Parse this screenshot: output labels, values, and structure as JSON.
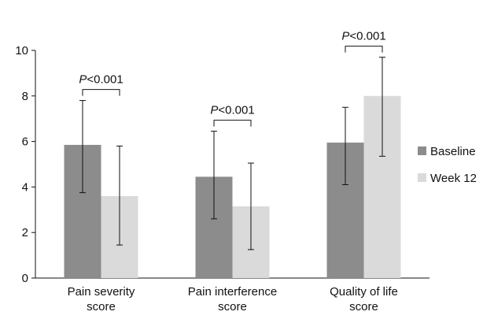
{
  "chart_data": {
    "type": "bar",
    "title": "",
    "xlabel": "",
    "ylabel": "",
    "ylim": [
      0,
      10
    ],
    "yticks": [
      0,
      2,
      4,
      6,
      8,
      10
    ],
    "categories": [
      [
        "Pain severity",
        "score"
      ],
      [
        "Pain interference",
        "score"
      ],
      [
        "Quality of life",
        "score"
      ]
    ],
    "series": [
      {
        "name": "Baseline",
        "color": "#8c8c8c",
        "values": [
          5.85,
          4.45,
          5.95
        ],
        "error_low": [
          3.75,
          2.6,
          4.1
        ],
        "error_high": [
          7.8,
          6.45,
          7.5
        ]
      },
      {
        "name": "Week 12",
        "color": "#dadada",
        "values": [
          3.6,
          3.15,
          8.0
        ],
        "error_low": [
          1.45,
          1.25,
          5.35
        ],
        "error_high": [
          5.8,
          5.05,
          9.7
        ]
      }
    ],
    "annotations": [
      {
        "p_symbol": "P",
        "text": "<0.001"
      },
      {
        "p_symbol": "P",
        "text": "<0.001"
      },
      {
        "p_symbol": "P",
        "text": "<0.001"
      }
    ],
    "legend": {
      "position": "right"
    },
    "grid": false
  }
}
